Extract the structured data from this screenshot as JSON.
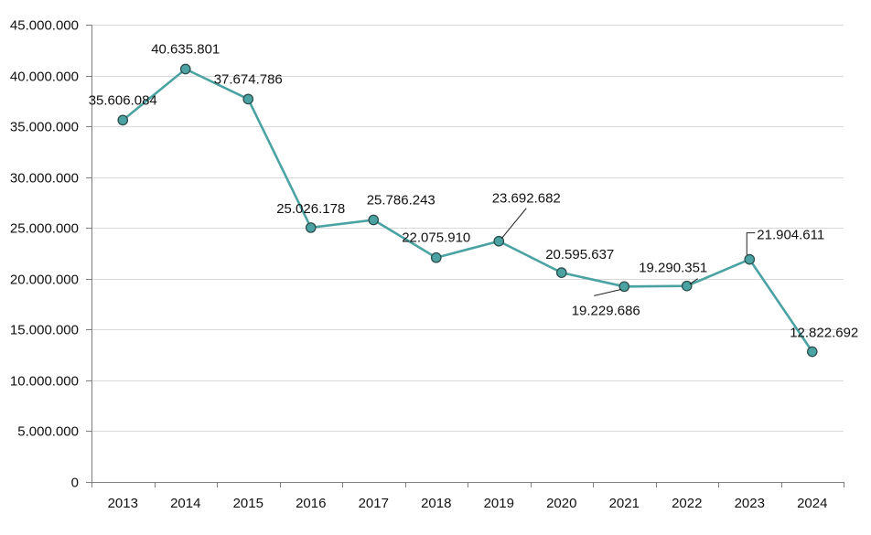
{
  "chart_data": {
    "type": "line",
    "title": "",
    "xlabel": "",
    "ylabel": "",
    "ylim": [
      0,
      45000000
    ],
    "yticks": [
      0,
      5000000,
      10000000,
      15000000,
      20000000,
      25000000,
      30000000,
      35000000,
      40000000,
      45000000
    ],
    "ytick_labels": [
      "0",
      "5.000.000",
      "10.000.000",
      "15.000.000",
      "20.000.000",
      "25.000.000",
      "30.000.000",
      "35.000.000",
      "40.000.000",
      "45.000.000"
    ],
    "categories": [
      "2013",
      "2014",
      "2015",
      "2016",
      "2017",
      "2018",
      "2019",
      "2020",
      "2021",
      "2022",
      "2023",
      "2024"
    ],
    "values": [
      35606084,
      40635801,
      37674786,
      25026178,
      25786243,
      22075910,
      23692682,
      20595637,
      19229686,
      19290351,
      21904611,
      12822692
    ],
    "data_labels": [
      "35.606.084",
      "40.635.801",
      "37.674.786",
      "25.026.178",
      "25.786.243",
      "22.075.910",
      "23.692.682",
      "20.595.637",
      "19.229.686",
      "19.290.351",
      "21.904.611",
      "12.822.692"
    ],
    "grid": true,
    "legend": "none",
    "colors": {
      "line": "#4aa3a2",
      "marker_edge": "#2f4f4f"
    }
  }
}
